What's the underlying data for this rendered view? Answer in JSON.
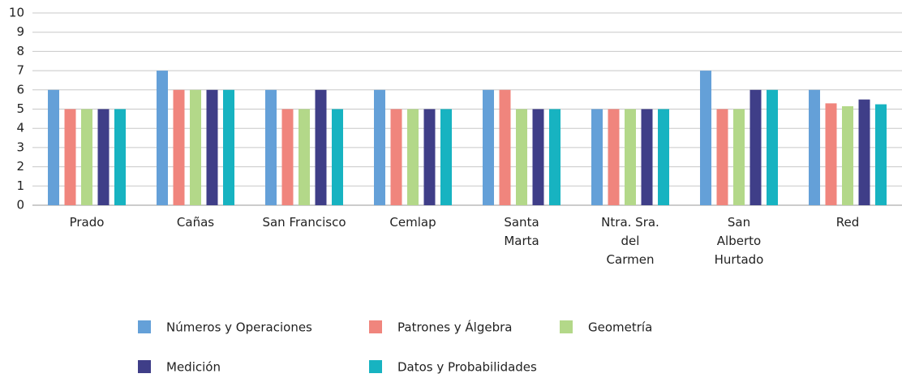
{
  "chart_data": {
    "type": "bar",
    "categories": [
      "Prado",
      "Cañas",
      "San Francisco",
      "Cemlap",
      "Santa\nMarta",
      "Ntra. Sra.\ndel\nCarmen",
      "San\nAlberto\nHurtado",
      "Red"
    ],
    "series": [
      {
        "name": "Números y Operaciones",
        "color": "#64a0d8",
        "values": [
          6,
          7,
          6,
          6,
          6,
          5,
          7,
          6
        ]
      },
      {
        "name": "Patrones y Álgebra",
        "color": "#f0857d",
        "values": [
          5,
          6,
          5,
          5,
          6,
          5,
          5,
          5.3
        ]
      },
      {
        "name": "Geometría",
        "color": "#b3d889",
        "values": [
          5,
          6,
          5,
          5,
          5,
          5,
          5,
          5.15
        ]
      },
      {
        "name": "Medición",
        "color": "#3f3e88",
        "values": [
          5,
          6,
          6,
          5,
          5,
          5,
          6,
          5.5
        ]
      },
      {
        "name": "Datos y Probabilidades",
        "color": "#17b3c1",
        "values": [
          5,
          6,
          5,
          5,
          5,
          5,
          6,
          5.25
        ]
      }
    ],
    "ylim": [
      0,
      10
    ],
    "yticks": [
      0,
      1,
      2,
      3,
      4,
      5,
      6,
      7,
      8,
      9,
      10
    ],
    "grid": true
  }
}
